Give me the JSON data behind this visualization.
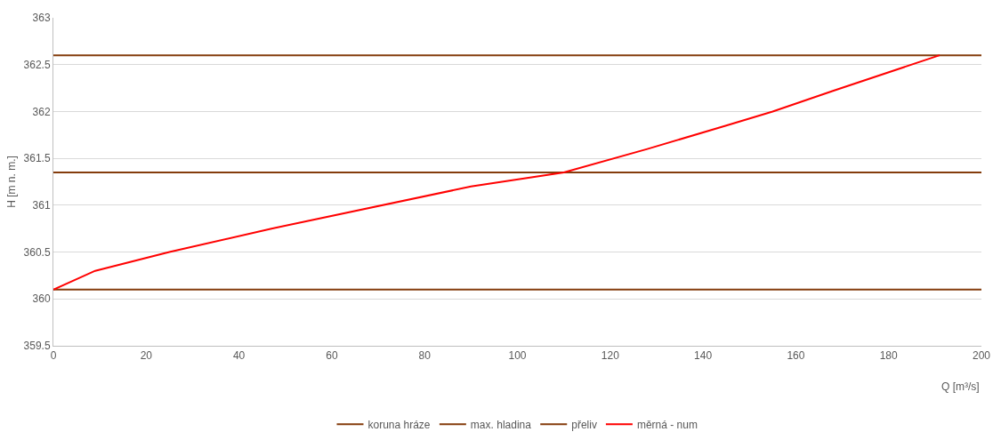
{
  "chart_data": {
    "type": "line",
    "xlabel": "Q [m³/s]",
    "ylabel": "H [m n. m.]",
    "xlim": [
      0,
      200
    ],
    "xticks": [
      0,
      20,
      40,
      60,
      80,
      100,
      120,
      140,
      160,
      180,
      200
    ],
    "ylim": [
      359.5,
      363
    ],
    "yticks": [
      359.5,
      360,
      360.5,
      361,
      361.5,
      362,
      362.5,
      363
    ],
    "grid": "y",
    "legend": "bottom",
    "marker": "none",
    "line_style": "solid",
    "series": [
      {
        "name": "koruna hráze",
        "color": "#843c0c",
        "x": [
          0,
          200
        ],
        "values": [
          362.6,
          362.6
        ]
      },
      {
        "name": "max. hladina",
        "color": "#843c0c",
        "x": [
          0,
          200
        ],
        "values": [
          361.35,
          361.35
        ]
      },
      {
        "name": "přeliv",
        "color": "#843c0c",
        "x": [
          0,
          200
        ],
        "values": [
          360.1,
          360.1
        ]
      },
      {
        "name": "měrná - num",
        "color": "#ff0000",
        "x": [
          0,
          9,
          25,
          47,
          90,
          110,
          128,
          145,
          155,
          168,
          191
        ],
        "values": [
          360.1,
          360.3,
          360.5,
          360.75,
          361.2,
          361.35,
          361.6,
          361.85,
          362.0,
          362.22,
          362.6
        ]
      }
    ]
  }
}
